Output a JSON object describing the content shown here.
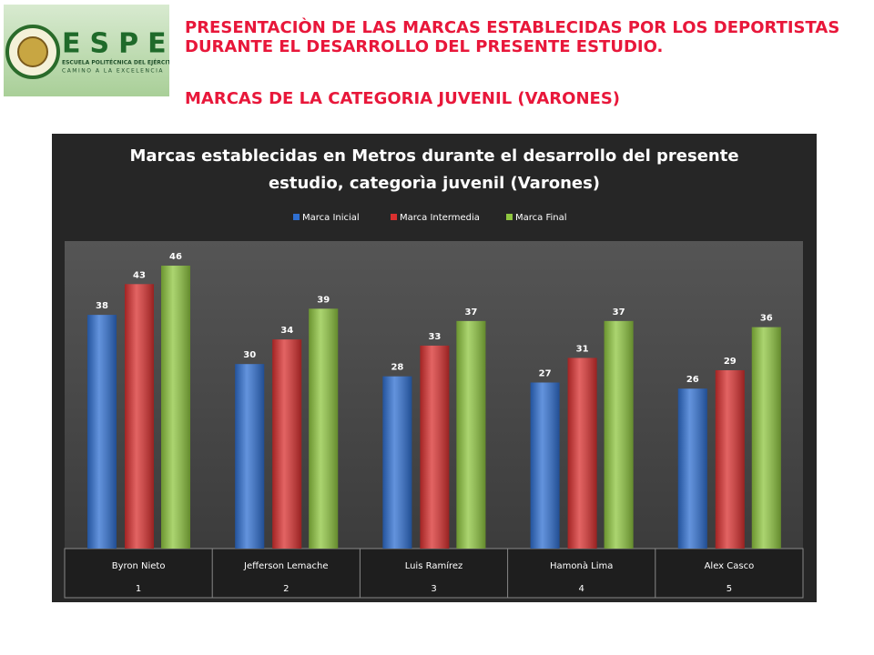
{
  "header": {
    "logo": {
      "name": "ESPE",
      "line1": "ESCUELA POLITÉCNICA DEL EJÉRCITO",
      "line2": "CAMINO A LA EXCELENCIA"
    },
    "title": "PRESENTACIÒN DE LAS MARCAS ESTABLECIDAS POR LOS DEPORTISTAS DURANTE EL DESARROLLO DEL PRESENTE ESTUDIO.",
    "subtitle": "MARCAS DE LA CATEGORIA JUVENIL (VARONES)"
  },
  "chart_data": {
    "type": "bar",
    "title": "Marcas establecidas en Metros durante el desarrollo del presente estudio, categorìa juvenil (Varones)",
    "categories": [
      "Byron Nieto",
      "Jefferson Lemache",
      "Luis Ramírez",
      "Hamonà Lima",
      "Alex Casco"
    ],
    "category_numbers": [
      1,
      2,
      3,
      4,
      5
    ],
    "series": [
      {
        "name": "Marca Inicial",
        "color": "#2f6fd1",
        "values": [
          38,
          30,
          28,
          27,
          26
        ]
      },
      {
        "name": "Marca Intermedia",
        "color": "#d9302f",
        "values": [
          43,
          34,
          33,
          31,
          29
        ]
      },
      {
        "name": "Marca Final",
        "color": "#8fc640",
        "values": [
          46,
          39,
          37,
          37,
          36
        ]
      }
    ],
    "ylim": [
      0,
      50
    ]
  }
}
